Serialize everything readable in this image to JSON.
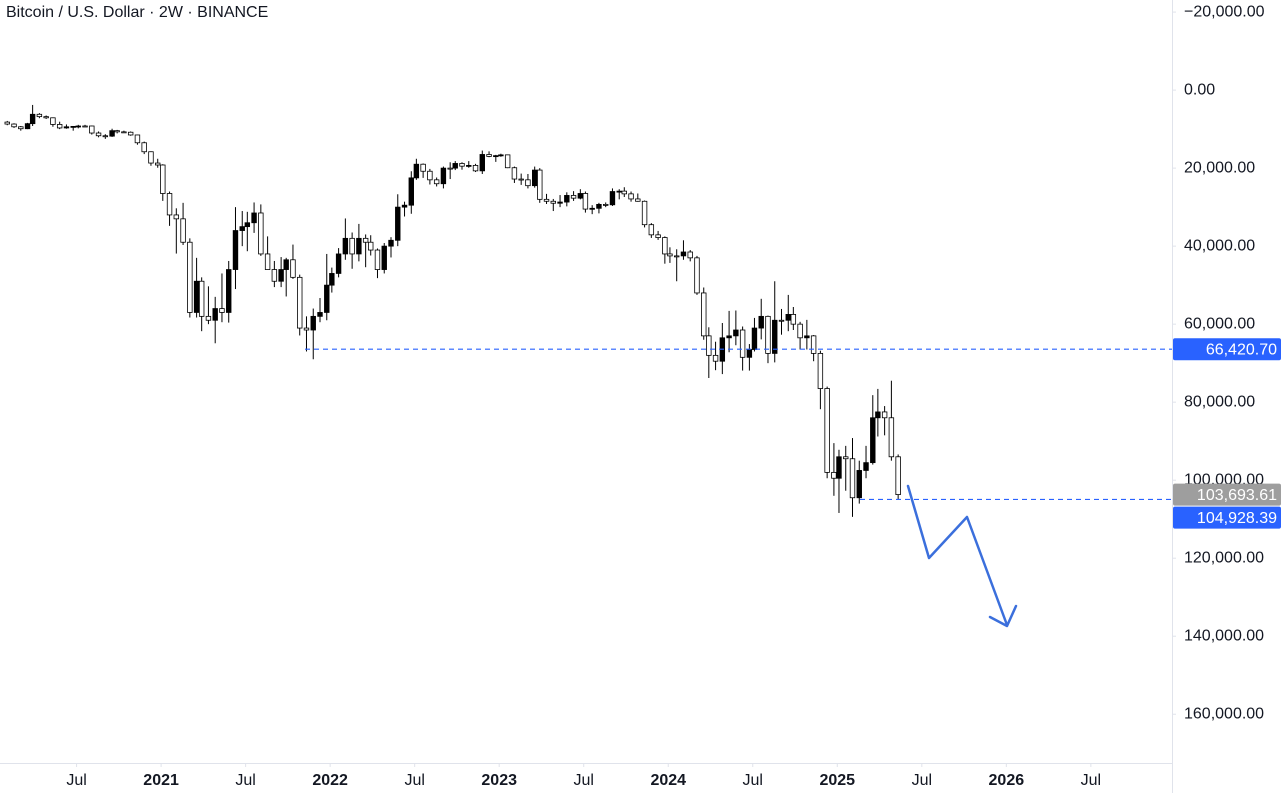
{
  "chart_data": {
    "type": "candlestick",
    "title": "Bitcoin / U.S. Dollar · 2W · BINANCE",
    "inverted": true,
    "up_color": "#ffffff",
    "down_color": "#000000",
    "border_color": "#000000",
    "xlim": [
      2020.047,
      2026.98
    ],
    "xticks": [
      {
        "value": 2020.5,
        "label": "Jul"
      },
      2021,
      {
        "value": 2021.5,
        "label": "Jul"
      },
      2022,
      {
        "value": 2022.5,
        "label": "Jul"
      },
      2023,
      {
        "value": 2023.5,
        "label": "Jul"
      },
      2024,
      {
        "value": 2024.5,
        "label": "Jul"
      },
      2025,
      {
        "value": 2025.5,
        "label": "Jul"
      },
      2026,
      {
        "value": 2026.5,
        "label": "Jul"
      }
    ],
    "ylim": [
      -23100,
      172500
    ],
    "yticks": [
      {
        "value": -20000,
        "label": "−20,000.00"
      },
      {
        "value": 0,
        "label": "0.00"
      },
      {
        "value": 20000,
        "label": "20,000.00"
      },
      {
        "value": 40000,
        "label": "40,000.00"
      },
      {
        "value": 60000,
        "label": "60,000.00"
      },
      {
        "value": 80000,
        "label": "80,000.00"
      },
      {
        "value": 100000,
        "label": "100,000.00"
      },
      {
        "value": 120000,
        "label": "120,000.00"
      },
      {
        "value": 140000,
        "label": "140,000.00"
      },
      {
        "value": 160000,
        "label": "160,000.00"
      }
    ],
    "price_lines": [
      {
        "value": 66420.7,
        "label": "66,420.70",
        "color": "#2962ff"
      },
      {
        "value": 104928.39,
        "label": "104,928.39",
        "color": "#2962ff"
      }
    ],
    "last_price": {
      "value": 103693.61,
      "label": "103,693.61",
      "color": "#9e9e9e"
    },
    "x": [
      2020.09,
      2020.13,
      2020.17,
      2020.21,
      2020.24,
      2020.28,
      2020.32,
      2020.36,
      2020.4,
      2020.44,
      2020.48,
      2020.51,
      2020.55,
      2020.59,
      2020.63,
      2020.67,
      2020.71,
      2020.74,
      2020.78,
      2020.82,
      2020.86,
      2020.9,
      2020.94,
      2020.98,
      2021.01,
      2021.05,
      2021.09,
      2021.13,
      2021.17,
      2021.21,
      2021.24,
      2021.28,
      2021.32,
      2021.36,
      2021.4,
      2021.44,
      2021.48,
      2021.51,
      2021.55,
      2021.59,
      2021.63,
      2021.67,
      2021.71,
      2021.74,
      2021.78,
      2021.82,
      2021.86,
      2021.9,
      2021.94,
      2021.98,
      2022.01,
      2022.05,
      2022.09,
      2022.13,
      2022.17,
      2022.21,
      2022.24,
      2022.28,
      2022.32,
      2022.36,
      2022.4,
      2022.44,
      2022.48,
      2022.51,
      2022.55,
      2022.59,
      2022.63,
      2022.67,
      2022.71,
      2022.74,
      2022.78,
      2022.82,
      2022.86,
      2022.9,
      2022.94,
      2022.98,
      2023.01,
      2023.05,
      2023.09,
      2023.13,
      2023.17,
      2023.21,
      2023.24,
      2023.28,
      2023.32,
      2023.36,
      2023.4,
      2023.44,
      2023.48,
      2023.51,
      2023.55,
      2023.59,
      2023.63,
      2023.67,
      2023.71,
      2023.74,
      2023.78,
      2023.82,
      2023.86,
      2023.9,
      2023.94,
      2023.98,
      2024.01,
      2024.05,
      2024.09,
      2024.13,
      2024.17,
      2024.21,
      2024.24,
      2024.28,
      2024.32,
      2024.36,
      2024.4,
      2024.44,
      2024.48,
      2024.51,
      2024.55,
      2024.59,
      2024.63,
      2024.67,
      2024.71,
      2024.74,
      2024.78,
      2024.82,
      2024.86,
      2024.9,
      2024.94,
      2024.98,
      2025.01,
      2025.05,
      2025.09,
      2025.13,
      2025.17,
      2025.21,
      2025.24,
      2025.28,
      2025.32,
      2025.36
    ],
    "candles": [
      [
        8200,
        9000,
        7900,
        8700
      ],
      [
        8700,
        9700,
        8500,
        9400
      ],
      [
        9400,
        10400,
        9200,
        9900
      ],
      [
        9900,
        10000,
        8400,
        8600
      ],
      [
        8600,
        9200,
        3800,
        6200
      ],
      [
        6200,
        7200,
        5900,
        6800
      ],
      [
        6800,
        7400,
        6500,
        7100
      ],
      [
        7100,
        9400,
        7000,
        8800
      ],
      [
        8800,
        10000,
        8100,
        9700
      ],
      [
        9700,
        9900,
        8800,
        9400
      ],
      [
        9400,
        10400,
        9200,
        9300
      ],
      [
        9300,
        9800,
        8900,
        9200
      ],
      [
        9200,
        9400,
        8900,
        9200
      ],
      [
        9200,
        11400,
        9100,
        11000
      ],
      [
        11000,
        12100,
        10600,
        11700
      ],
      [
        11700,
        12500,
        11300,
        11800
      ],
      [
        11800,
        12000,
        9900,
        10400
      ],
      [
        10400,
        11100,
        10200,
        10700
      ],
      [
        10700,
        11000,
        10400,
        10800
      ],
      [
        10800,
        11700,
        10600,
        11500
      ],
      [
        11500,
        14000,
        11400,
        13500
      ],
      [
        13500,
        16400,
        13200,
        15800
      ],
      [
        15800,
        19400,
        15700,
        18700
      ],
      [
        18700,
        19900,
        17600,
        19200
      ],
      [
        19200,
        28400,
        19000,
        26500
      ],
      [
        26500,
        34800,
        26000,
        32000
      ],
      [
        32000,
        41900,
        30300,
        33000
      ],
      [
        33000,
        39700,
        28900,
        39000
      ],
      [
        39000,
        58300,
        38000,
        57000
      ],
      [
        57000,
        58300,
        43000,
        49000
      ],
      [
        49000,
        61800,
        48000,
        58000
      ],
      [
        58000,
        60000,
        50300,
        59000
      ],
      [
        59000,
        64900,
        53000,
        56000
      ],
      [
        56000,
        59500,
        47000,
        57000
      ],
      [
        57000,
        59600,
        43800,
        46000
      ],
      [
        46000,
        51000,
        30000,
        36000
      ],
      [
        36000,
        40000,
        31000,
        35000
      ],
      [
        35000,
        41300,
        31200,
        34000
      ],
      [
        34000,
        36600,
        28800,
        31500
      ],
      [
        31500,
        42500,
        29300,
        42000
      ],
      [
        42000,
        46000,
        37500,
        46000
      ],
      [
        46000,
        50500,
        43800,
        49000
      ],
      [
        49000,
        50500,
        42800,
        46000
      ],
      [
        46000,
        52900,
        43000,
        43500
      ],
      [
        43500,
        48400,
        39600,
        48000
      ],
      [
        48000,
        62900,
        47300,
        61000
      ],
      [
        61000,
        67000,
        58000,
        61500
      ],
      [
        61500,
        69000,
        56000,
        58000
      ],
      [
        58000,
        59500,
        53300,
        57000
      ],
      [
        57000,
        59000,
        42000,
        50000
      ],
      [
        50000,
        51900,
        45500,
        47000
      ],
      [
        47000,
        48000,
        40500,
        42000
      ],
      [
        42000,
        43500,
        32900,
        38000
      ],
      [
        38000,
        45800,
        36500,
        42000
      ],
      [
        42000,
        43900,
        34300,
        38000
      ],
      [
        38000,
        45400,
        37000,
        39000
      ],
      [
        39000,
        42400,
        37200,
        41000
      ],
      [
        41000,
        48200,
        40600,
        46000
      ],
      [
        46000,
        47000,
        39200,
        40000
      ],
      [
        40000,
        42900,
        37700,
        38500
      ],
      [
        38500,
        40000,
        26700,
        30000
      ],
      [
        30000,
        32400,
        28600,
        29500
      ],
      [
        29500,
        31700,
        20800,
        22500
      ],
      [
        22500,
        23000,
        17600,
        19000
      ],
      [
        19000,
        22500,
        18800,
        20800
      ],
      [
        20800,
        24200,
        20200,
        23000
      ],
      [
        23000,
        24700,
        22400,
        24000
      ],
      [
        24000,
        25200,
        19600,
        20000
      ],
      [
        20000,
        22800,
        18500,
        20000
      ],
      [
        20000,
        20500,
        18200,
        18800
      ],
      [
        18800,
        20400,
        18500,
        19500
      ],
      [
        19500,
        19900,
        18200,
        19300
      ],
      [
        19300,
        21000,
        18900,
        20700
      ],
      [
        20700,
        21500,
        15500,
        16500
      ],
      [
        16500,
        17200,
        15700,
        17000
      ],
      [
        17000,
        18400,
        16600,
        16800
      ],
      [
        16800,
        17100,
        16300,
        16600
      ],
      [
        16600,
        20000,
        16500,
        19900
      ],
      [
        19900,
        23800,
        19600,
        22800
      ],
      [
        22800,
        24300,
        21400,
        23000
      ],
      [
        23000,
        25200,
        21500,
        24500
      ],
      [
        24500,
        25000,
        19600,
        20500
      ],
      [
        20500,
        28900,
        20000,
        28000
      ],
      [
        28000,
        29200,
        26600,
        28500
      ],
      [
        28500,
        31000,
        27900,
        29000
      ],
      [
        29000,
        30000,
        26900,
        28700
      ],
      [
        28700,
        29800,
        26200,
        27000
      ],
      [
        27000,
        28400,
        25900,
        27700
      ],
      [
        27700,
        28000,
        25400,
        26500
      ],
      [
        26500,
        31400,
        26000,
        30500
      ],
      [
        30500,
        31800,
        29500,
        30300
      ],
      [
        30300,
        31600,
        28900,
        29300
      ],
      [
        29300,
        30000,
        28800,
        29400
      ],
      [
        29400,
        29700,
        25200,
        26000
      ],
      [
        26000,
        28000,
        25400,
        25900
      ],
      [
        25900,
        27400,
        24900,
        26600
      ],
      [
        26600,
        28600,
        26000,
        27900
      ],
      [
        27900,
        28600,
        26500,
        28500
      ],
      [
        28500,
        35200,
        28300,
        34500
      ],
      [
        34500,
        37900,
        34100,
        37100
      ],
      [
        37100,
        38400,
        36100,
        37800
      ],
      [
        37800,
        44500,
        37500,
        42000
      ],
      [
        42000,
        44300,
        40300,
        42500
      ],
      [
        42500,
        49000,
        40800,
        42500
      ],
      [
        42500,
        43500,
        38500,
        41500
      ],
      [
        41500,
        43900,
        41000,
        43000
      ],
      [
        43000,
        52500,
        42500,
        52000
      ],
      [
        52000,
        64000,
        50600,
        63000
      ],
      [
        63000,
        73800,
        60800,
        68000
      ],
      [
        68000,
        71800,
        64500,
        69500
      ],
      [
        69500,
        72800,
        59700,
        63500
      ],
      [
        63500,
        67200,
        56600,
        63000
      ],
      [
        63000,
        65400,
        56500,
        61500
      ],
      [
        61500,
        71900,
        60600,
        68500
      ],
      [
        68500,
        71900,
        65100,
        66500
      ],
      [
        66500,
        67000,
        58400,
        61000
      ],
      [
        61000,
        63900,
        53500,
        58000
      ],
      [
        58000,
        70000,
        57800,
        67500
      ],
      [
        67500,
        69800,
        49000,
        59000
      ],
      [
        59000,
        62700,
        56100,
        59000
      ],
      [
        59000,
        61800,
        52500,
        57500
      ],
      [
        57500,
        61500,
        55600,
        60000
      ],
      [
        60000,
        66500,
        59400,
        63500
      ],
      [
        63500,
        66500,
        58900,
        63000
      ],
      [
        63000,
        69500,
        62800,
        67500
      ],
      [
        67500,
        81800,
        66800,
        76500
      ],
      [
        76500,
        99500,
        76000,
        98000
      ],
      [
        98000,
        104000,
        90500,
        99500
      ],
      [
        99500,
        108400,
        92200,
        94000
      ],
      [
        94000,
        102700,
        91200,
        94500
      ],
      [
        94500,
        109400,
        89200,
        104500
      ],
      [
        104500,
        106000,
        95000,
        97500
      ],
      [
        97500,
        99500,
        91200,
        95500
      ],
      [
        95500,
        96000,
        78200,
        84000
      ],
      [
        84000,
        88800,
        76600,
        82500
      ],
      [
        82500,
        88500,
        81000,
        84000
      ],
      [
        84000,
        95000,
        74500,
        94000
      ],
      [
        94000,
        104900,
        93400,
        103693.61
      ]
    ]
  }
}
